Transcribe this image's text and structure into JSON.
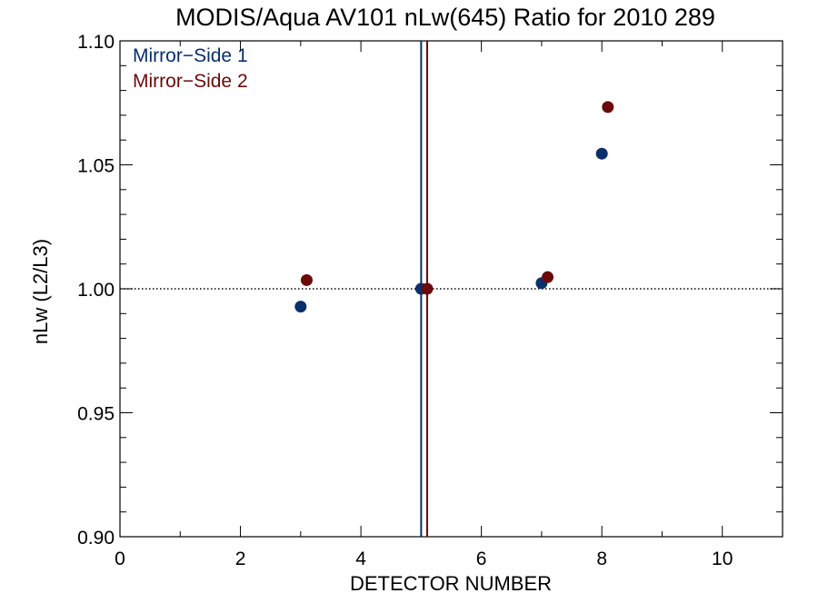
{
  "colors": {
    "series_1": "#0a2f6b",
    "series_2": "#6b0a0a",
    "axis": "#000000"
  },
  "chart_data": {
    "type": "scatter",
    "title": "MODIS/Aqua AV101 nLw(645) Ratio for 2010 289",
    "xlabel": "DETECTOR NUMBER",
    "ylabel": "nLw (L2/L3)",
    "xlim": [
      0,
      11
    ],
    "ylim": [
      0.9,
      1.1
    ],
    "x_ticks": [
      0,
      2,
      4,
      6,
      8,
      10
    ],
    "x_tick_labels": [
      "0",
      "2",
      "4",
      "6",
      "8",
      "10"
    ],
    "y_ticks": [
      0.9,
      0.95,
      1.0,
      1.05,
      1.1
    ],
    "y_tick_labels": [
      "0.90",
      "0.95",
      "1.00",
      "1.05",
      "1.10"
    ],
    "reference_line_y": 1.0,
    "grid": false,
    "legend_position": "top-left",
    "series": [
      {
        "name": "Mirror−Side 1",
        "color": "#0a2f6b",
        "x": [
          3.0,
          5.0,
          7.0,
          8.0
        ],
        "y": [
          0.9928,
          1.0,
          1.0023,
          1.0545
        ],
        "vertical_line_x": 5.0
      },
      {
        "name": "Mirror−Side 2",
        "color": "#6b0a0a",
        "x": [
          3.1,
          5.1,
          7.1,
          8.1
        ],
        "y": [
          1.0035,
          1.0,
          1.0047,
          1.0733
        ],
        "vertical_line_x": 5.1
      }
    ]
  }
}
